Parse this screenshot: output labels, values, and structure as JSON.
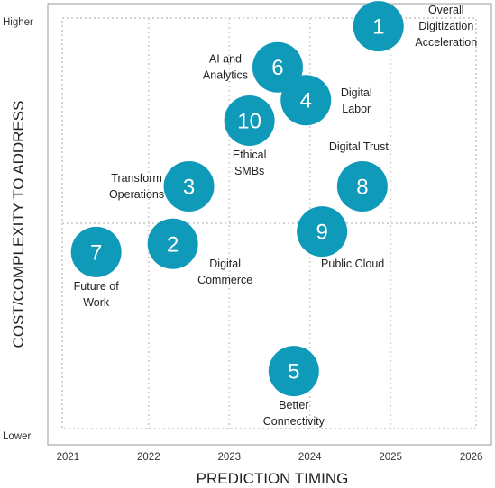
{
  "chart_data": {
    "type": "scatter",
    "xlabel": "PREDICTION TIMING",
    "ylabel": "COST/COMPLEXITY TO ADDRESS",
    "x_ticks": [
      "2021",
      "2022",
      "2023",
      "2024",
      "2025",
      "2026"
    ],
    "xlim": [
      2020.75,
      2026.25
    ],
    "y_tick_labels": {
      "top": "Higher",
      "bottom": "Lower"
    },
    "ylim": [
      0,
      100
    ],
    "grid": true,
    "bubble_color": "#0E9AB8",
    "points": [
      {
        "num": "1",
        "x": 2024.85,
        "y": 98,
        "label": [
          "Overall",
          "Digitization",
          "Acceleration"
        ],
        "label_pos": "right"
      },
      {
        "num": "6",
        "x": 2023.6,
        "y": 88,
        "label": [
          "AI and",
          "Analytics"
        ],
        "label_pos": "left"
      },
      {
        "num": "4",
        "x": 2023.95,
        "y": 80,
        "label": [
          "Digital",
          "Labor"
        ],
        "label_pos": "right"
      },
      {
        "num": "10",
        "x": 2023.25,
        "y": 75,
        "label": [
          "Ethical",
          "SMBs"
        ],
        "label_pos": "below"
      },
      {
        "num": "3",
        "x": 2022.5,
        "y": 59,
        "label": [
          "Transform",
          "Operations"
        ],
        "label_pos": "left"
      },
      {
        "num": "8",
        "x": 2024.65,
        "y": 59,
        "label": [
          "Digital Trust"
        ],
        "label_pos": "above"
      },
      {
        "num": "9",
        "x": 2024.15,
        "y": 48,
        "label": [
          "Public Cloud"
        ],
        "label_pos": "below-right"
      },
      {
        "num": "2",
        "x": 2022.3,
        "y": 45,
        "label": [
          "Digital",
          "Commerce"
        ],
        "label_pos": "below-right"
      },
      {
        "num": "7",
        "x": 2021.35,
        "y": 43,
        "label": [
          "Future of",
          "Work"
        ],
        "label_pos": "below"
      },
      {
        "num": "5",
        "x": 2023.8,
        "y": 14,
        "label": [
          "Better",
          "Connectivity"
        ],
        "label_pos": "below"
      }
    ]
  }
}
